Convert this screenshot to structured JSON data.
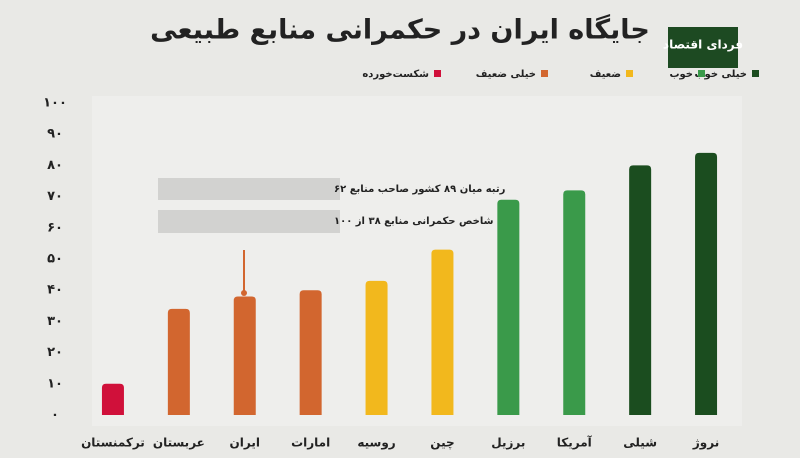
{
  "chart_data": {
    "type": "bar",
    "title": "جایگاه ایران در حکمرانی منابع طبیعی",
    "logo": "فردای اقتصاد",
    "categories": [
      "ترکمنستان",
      "عربستان",
      "ایران",
      "امارات",
      "روسیه",
      "چین",
      "برزیل",
      "آمریکا",
      "شیلی",
      "نروژ"
    ],
    "values": [
      10,
      34,
      38,
      40,
      43,
      53,
      69,
      72,
      80,
      84
    ],
    "colors": [
      "#d0103a",
      "#d2662f",
      "#d2662f",
      "#d2662f",
      "#f2b81d",
      "#f2b81d",
      "#3a9a4a",
      "#3a9a4a",
      "#1b4d1f",
      "#1b4d1f"
    ],
    "legend": [
      {
        "name": "خیلی خوب",
        "color": "#1b4d1f"
      },
      {
        "name": "خوب",
        "color": "#3a9a4a"
      },
      {
        "name": "ضعیف",
        "color": "#f2b81d"
      },
      {
        "name": "خیلی ضعیف",
        "color": "#d2662f"
      },
      {
        "name": "شکست‌خورده",
        "color": "#d0103a"
      }
    ],
    "annotations": [
      "رتبه میان ۸۹ کشور صاحب منابع ۶۲",
      "شاخص حکمرانی منابع ۳۸ از ۱۰۰"
    ],
    "ylim": [
      0,
      100
    ],
    "yticks": [
      {
        "value": 0,
        "label": "۰"
      },
      {
        "value": 10,
        "label": "۱۰"
      },
      {
        "value": 20,
        "label": "۲۰"
      },
      {
        "value": 30,
        "label": "۳۰"
      },
      {
        "value": 40,
        "label": "۴۰"
      },
      {
        "value": 50,
        "label": "۵۰"
      },
      {
        "value": 60,
        "label": "۶۰"
      },
      {
        "value": 70,
        "label": "۷۰"
      },
      {
        "value": 80,
        "label": "۸۰"
      },
      {
        "value": 90,
        "label": "۹۰"
      },
      {
        "value": 100,
        "label": "۱۰۰"
      }
    ],
    "grid": false
  }
}
